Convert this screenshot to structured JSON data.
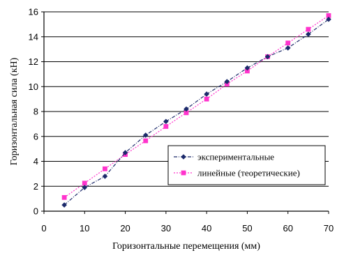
{
  "chart_data": {
    "type": "line",
    "title": "",
    "xlabel": "Горизонтальные перемещения (мм)",
    "ylabel": "Горизонтальная сила (кН)",
    "xlim": [
      0,
      70
    ],
    "ylim": [
      0,
      16
    ],
    "xticks": [
      0,
      10,
      20,
      30,
      40,
      50,
      60,
      70
    ],
    "yticks": [
      0,
      2,
      4,
      6,
      8,
      10,
      12,
      14,
      16
    ],
    "grid": "horizontal",
    "legend_position": "bottom-right",
    "series": [
      {
        "name": "экспериментальные",
        "color": "#1c2a6b",
        "marker": "diamond",
        "line_style": "dash-dot",
        "x": [
          5,
          10,
          15,
          20,
          25,
          30,
          35,
          40,
          45,
          50,
          55,
          60,
          65,
          70
        ],
        "y": [
          0.5,
          1.9,
          2.8,
          4.7,
          6.1,
          7.2,
          8.2,
          9.4,
          10.4,
          11.5,
          12.4,
          13.1,
          14.2,
          15.4
        ]
      },
      {
        "name": "линейные (теоретические)",
        "color": "#ff33cc",
        "marker": "square",
        "line_style": "dotted",
        "x": [
          5,
          10,
          15,
          20,
          25,
          30,
          35,
          40,
          45,
          50,
          55,
          60,
          65,
          70
        ],
        "y": [
          1.1,
          2.25,
          3.4,
          4.55,
          5.65,
          6.8,
          7.9,
          9.0,
          10.2,
          11.25,
          12.4,
          13.5,
          14.6,
          15.7
        ]
      }
    ]
  }
}
